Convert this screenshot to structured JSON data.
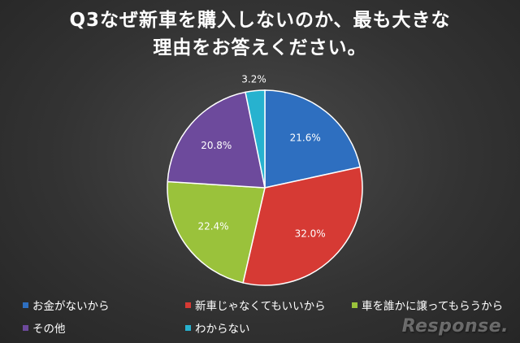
{
  "chart_data": {
    "type": "pie",
    "title_lines": [
      "Q3なぜ新車を購入しないのか、最も大きな",
      "理由をお答えください。"
    ],
    "slices": [
      {
        "label": "お金がないから",
        "value": 21.6,
        "value_label": "21.6%",
        "color": "#2e6fc0"
      },
      {
        "label": "新車じゃなくてもいいから",
        "value": 32.0,
        "value_label": "32.0%",
        "color": "#d63a34"
      },
      {
        "label": "車を誰かに譲ってもらうから",
        "value": 22.4,
        "value_label": "22.4%",
        "color": "#9ac23b"
      },
      {
        "label": "その他",
        "value": 20.8,
        "value_label": "20.8%",
        "color": "#6d4a9c"
      },
      {
        "label": "わからない",
        "value": 3.2,
        "value_label": "3.2%",
        "color": "#27b2cf"
      }
    ],
    "legend_position": "bottom"
  },
  "watermark": "Response."
}
